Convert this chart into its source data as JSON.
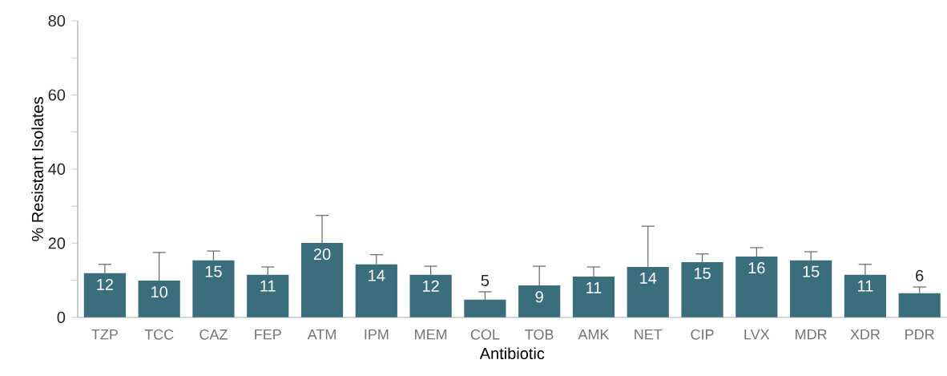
{
  "chart_data": {
    "type": "bar",
    "xlabel": "Antibiotic",
    "ylabel": "% Resistant Isolates",
    "categories": [
      "TZP",
      "TCC",
      "CAZ",
      "FEP",
      "ATM",
      "IPM",
      "MEM",
      "COL",
      "TOB",
      "AMK",
      "NET",
      "CIP",
      "LVX",
      "MDR",
      "XDR",
      "PDR"
    ],
    "values": [
      11.9,
      9.9,
      15.4,
      11.5,
      20.1,
      14.3,
      11.5,
      4.8,
      8.6,
      11.0,
      13.6,
      14.9,
      16.4,
      15.4,
      11.5,
      6.5
    ],
    "errors": [
      [
        11.9,
        14.3
      ],
      [
        9.9,
        17.5
      ],
      [
        15.4,
        17.9
      ],
      [
        11.5,
        13.6
      ],
      [
        20.1,
        27.5
      ],
      [
        14.3,
        16.9
      ],
      [
        11.5,
        13.8
      ],
      [
        4.8,
        6.9
      ],
      [
        8.6,
        13.8
      ],
      [
        11.0,
        13.6
      ],
      [
        13.6,
        24.6
      ],
      [
        14.9,
        17.1
      ],
      [
        16.4,
        18.8
      ],
      [
        15.4,
        17.7
      ],
      [
        11.5,
        14.3
      ],
      [
        6.5,
        8.2
      ]
    ],
    "value_labels": [
      "12",
      "10",
      "15",
      "11",
      "20",
      "14",
      "12",
      "5",
      "9",
      "11",
      "14",
      "15",
      "16",
      "15",
      "11",
      "6"
    ],
    "color": "#3b6e7c",
    "ylim": [
      0,
      80
    ],
    "yticks": [
      0,
      {
        "value": 10,
        "label": null
      },
      20,
      {
        "value": 30,
        "label": null
      },
      40,
      {
        "value": 50,
        "label": null
      },
      60,
      {
        "value": 70,
        "label": null
      },
      80
    ],
    "grid": false
  }
}
